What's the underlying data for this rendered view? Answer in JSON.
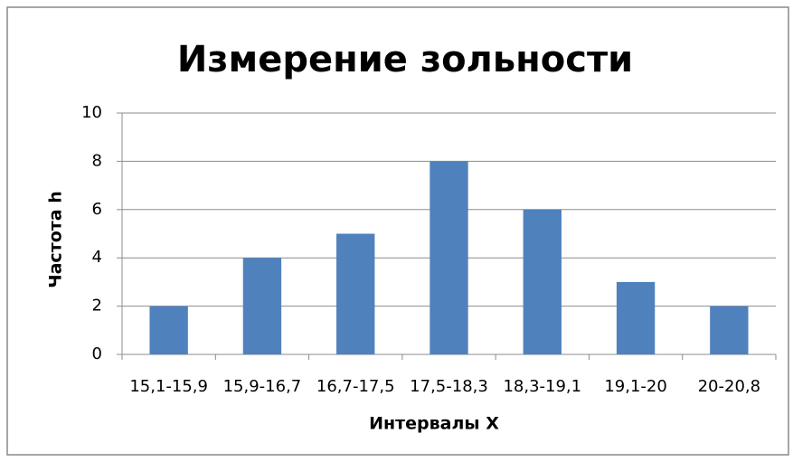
{
  "chart_data": {
    "type": "bar",
    "title": "Измерение зольности",
    "categories": [
      "15,1-15,9",
      "15,9-16,7",
      "16,7-17,5",
      "17,5-18,3",
      "18,3-19,1",
      "19,1-20",
      "20-20,8"
    ],
    "values": [
      2,
      4,
      5,
      8,
      6,
      3,
      2
    ],
    "color": "#4f81bd",
    "ylim": [
      0,
      10
    ],
    "yticks": [
      0,
      2,
      4,
      6,
      8,
      10
    ],
    "grid": true,
    "xlabel": "Интервалы X",
    "ylabel": "Частота h"
  }
}
